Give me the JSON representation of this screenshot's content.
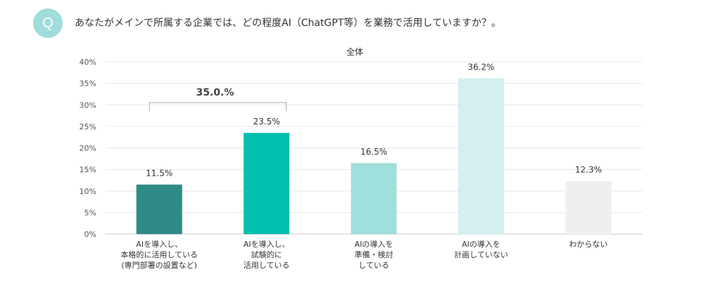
{
  "badge": "Q",
  "question": "あなたがメインで所属する企業では、どの程度AI（ChatGPT等）を業務で活用していますか？。",
  "chart_data": {
    "type": "bar",
    "title": "全体",
    "categories": [
      "AIを導入し、\n本格的に活用している\n(専門部署の設置など)",
      "AIを導入し、\n試験的に\n活用している",
      "AIの導入を\n準備・検討\nしている",
      "AIの導入を\n計画していない",
      "わからない"
    ],
    "values": [
      11.5,
      23.5,
      16.5,
      36.2,
      12.3
    ],
    "value_labels": [
      "11.5%",
      "23.5%",
      "16.5%",
      "36.2%",
      "12.3%"
    ],
    "colors": [
      "#2e8b87",
      "#00bfad",
      "#9fdfdc",
      "#d4efef",
      "#efefef"
    ],
    "y_ticks": [
      "0%",
      "5%",
      "10%",
      "15%",
      "20%",
      "25%",
      "30%",
      "35%",
      "40%"
    ],
    "ylim": [
      0,
      40
    ],
    "grid": true,
    "bracket": {
      "label": "35.0.%",
      "spans": [
        0,
        1
      ]
    }
  }
}
